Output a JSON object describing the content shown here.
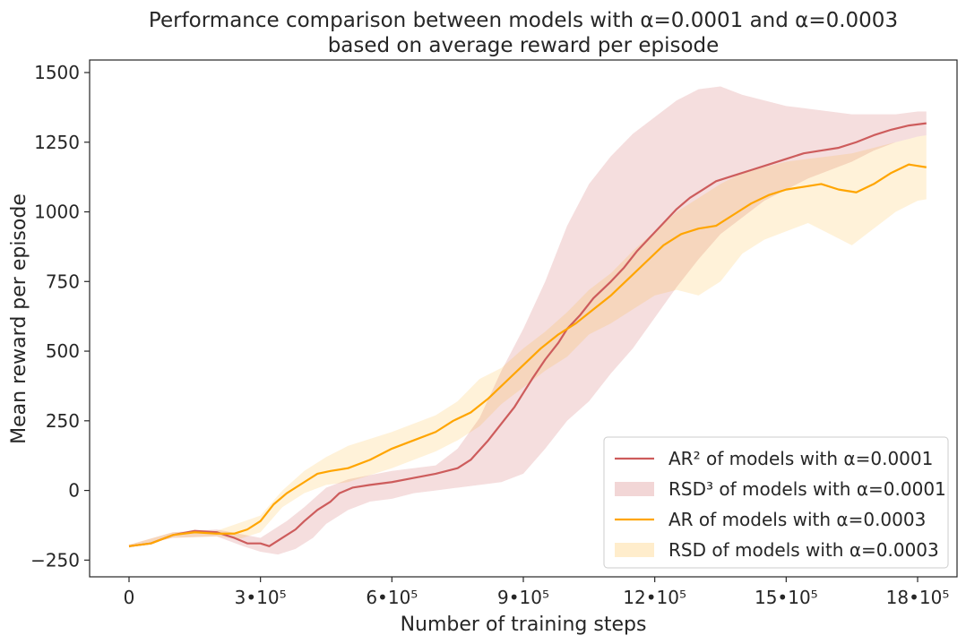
{
  "chart_data": {
    "type": "line",
    "title": "Performance comparison between models with α=0.0001 and α=0.0003",
    "subtitle": "based on average reward per episode",
    "xlabel": "Number of training steps",
    "ylabel": "Mean reward per episode",
    "xlim": [
      -90000,
      1890000
    ],
    "ylim": [
      -310,
      1545
    ],
    "x_ticks": [
      0,
      300000,
      600000,
      900000,
      1200000,
      1500000,
      1800000
    ],
    "x_tick_labels": [
      "0",
      "3•10⁵",
      "6•10⁵",
      "9•10⁵",
      "12•10⁵",
      "15•10⁵",
      "18•10⁵"
    ],
    "y_ticks": [
      -250,
      0,
      250,
      500,
      750,
      1000,
      1250,
      1500
    ],
    "y_tick_labels": [
      "−250",
      "0",
      "250",
      "500",
      "750",
      "1000",
      "1250",
      "1500"
    ],
    "legend_position": "bottom-right",
    "series": [
      {
        "name": "AR² of models with α=0.0001",
        "kind": "line",
        "color": "#cd5c5c",
        "points": [
          [
            0,
            -200
          ],
          [
            50000,
            -190
          ],
          [
            100000,
            -160
          ],
          [
            150000,
            -145
          ],
          [
            200000,
            -150
          ],
          [
            240000,
            -170
          ],
          [
            270000,
            -190
          ],
          [
            300000,
            -190
          ],
          [
            320000,
            -200
          ],
          [
            350000,
            -170
          ],
          [
            380000,
            -140
          ],
          [
            400000,
            -110
          ],
          [
            430000,
            -70
          ],
          [
            460000,
            -40
          ],
          [
            480000,
            -10
          ],
          [
            510000,
            10
          ],
          [
            550000,
            20
          ],
          [
            600000,
            30
          ],
          [
            650000,
            45
          ],
          [
            700000,
            60
          ],
          [
            750000,
            80
          ],
          [
            780000,
            110
          ],
          [
            820000,
            180
          ],
          [
            850000,
            240
          ],
          [
            880000,
            300
          ],
          [
            900000,
            350
          ],
          [
            920000,
            400
          ],
          [
            950000,
            470
          ],
          [
            980000,
            530
          ],
          [
            1000000,
            580
          ],
          [
            1030000,
            630
          ],
          [
            1060000,
            690
          ],
          [
            1100000,
            750
          ],
          [
            1130000,
            800
          ],
          [
            1160000,
            860
          ],
          [
            1190000,
            910
          ],
          [
            1220000,
            960
          ],
          [
            1250000,
            1010
          ],
          [
            1280000,
            1050
          ],
          [
            1310000,
            1080
          ],
          [
            1340000,
            1110
          ],
          [
            1380000,
            1130
          ],
          [
            1420000,
            1150
          ],
          [
            1460000,
            1170
          ],
          [
            1500000,
            1190
          ],
          [
            1540000,
            1210
          ],
          [
            1580000,
            1220
          ],
          [
            1620000,
            1230
          ],
          [
            1660000,
            1250
          ],
          [
            1700000,
            1275
          ],
          [
            1740000,
            1295
          ],
          [
            1780000,
            1310
          ],
          [
            1820000,
            1318
          ]
        ]
      },
      {
        "name": "RSD³ of models with α=0.0001",
        "kind": "band",
        "color": "#cd5c5c",
        "opacity": 0.2,
        "upper": [
          [
            0,
            -195
          ],
          [
            100000,
            -150
          ],
          [
            200000,
            -140
          ],
          [
            300000,
            -170
          ],
          [
            360000,
            -110
          ],
          [
            400000,
            -60
          ],
          [
            450000,
            10
          ],
          [
            500000,
            40
          ],
          [
            600000,
            70
          ],
          [
            700000,
            90
          ],
          [
            750000,
            150
          ],
          [
            800000,
            260
          ],
          [
            850000,
            430
          ],
          [
            900000,
            580
          ],
          [
            950000,
            750
          ],
          [
            1000000,
            950
          ],
          [
            1050000,
            1100
          ],
          [
            1100000,
            1200
          ],
          [
            1150000,
            1280
          ],
          [
            1200000,
            1340
          ],
          [
            1250000,
            1400
          ],
          [
            1300000,
            1440
          ],
          [
            1350000,
            1450
          ],
          [
            1400000,
            1420
          ],
          [
            1450000,
            1400
          ],
          [
            1500000,
            1380
          ],
          [
            1550000,
            1370
          ],
          [
            1600000,
            1360
          ],
          [
            1650000,
            1350
          ],
          [
            1700000,
            1350
          ],
          [
            1750000,
            1350
          ],
          [
            1800000,
            1360
          ],
          [
            1820000,
            1360
          ]
        ],
        "lower": [
          [
            0,
            -205
          ],
          [
            100000,
            -170
          ],
          [
            200000,
            -165
          ],
          [
            260000,
            -200
          ],
          [
            300000,
            -220
          ],
          [
            340000,
            -230
          ],
          [
            380000,
            -210
          ],
          [
            420000,
            -170
          ],
          [
            450000,
            -120
          ],
          [
            500000,
            -70
          ],
          [
            550000,
            -40
          ],
          [
            600000,
            -30
          ],
          [
            650000,
            -10
          ],
          [
            700000,
            0
          ],
          [
            750000,
            10
          ],
          [
            800000,
            20
          ],
          [
            850000,
            30
          ],
          [
            900000,
            60
          ],
          [
            950000,
            150
          ],
          [
            1000000,
            250
          ],
          [
            1050000,
            320
          ],
          [
            1100000,
            420
          ],
          [
            1150000,
            510
          ],
          [
            1200000,
            620
          ],
          [
            1250000,
            730
          ],
          [
            1300000,
            830
          ],
          [
            1350000,
            920
          ],
          [
            1400000,
            980
          ],
          [
            1450000,
            1040
          ],
          [
            1500000,
            1080
          ],
          [
            1550000,
            1120
          ],
          [
            1600000,
            1150
          ],
          [
            1650000,
            1180
          ],
          [
            1700000,
            1220
          ],
          [
            1750000,
            1250
          ],
          [
            1800000,
            1270
          ],
          [
            1820000,
            1275
          ]
        ]
      },
      {
        "name": "AR of models with α=0.0003",
        "kind": "line",
        "color": "#ffa500",
        "points": [
          [
            0,
            -200
          ],
          [
            50000,
            -190
          ],
          [
            100000,
            -160
          ],
          [
            150000,
            -150
          ],
          [
            200000,
            -155
          ],
          [
            240000,
            -155
          ],
          [
            270000,
            -140
          ],
          [
            300000,
            -110
          ],
          [
            330000,
            -50
          ],
          [
            360000,
            -10
          ],
          [
            400000,
            30
          ],
          [
            430000,
            60
          ],
          [
            460000,
            70
          ],
          [
            500000,
            80
          ],
          [
            550000,
            110
          ],
          [
            600000,
            150
          ],
          [
            650000,
            180
          ],
          [
            700000,
            210
          ],
          [
            740000,
            250
          ],
          [
            780000,
            280
          ],
          [
            820000,
            330
          ],
          [
            860000,
            390
          ],
          [
            900000,
            450
          ],
          [
            940000,
            510
          ],
          [
            980000,
            560
          ],
          [
            1020000,
            600
          ],
          [
            1060000,
            650
          ],
          [
            1100000,
            700
          ],
          [
            1140000,
            760
          ],
          [
            1180000,
            820
          ],
          [
            1220000,
            880
          ],
          [
            1260000,
            920
          ],
          [
            1300000,
            940
          ],
          [
            1340000,
            950
          ],
          [
            1380000,
            990
          ],
          [
            1420000,
            1030
          ],
          [
            1460000,
            1060
          ],
          [
            1500000,
            1080
          ],
          [
            1540000,
            1090
          ],
          [
            1580000,
            1100
          ],
          [
            1620000,
            1080
          ],
          [
            1660000,
            1070
          ],
          [
            1700000,
            1100
          ],
          [
            1740000,
            1140
          ],
          [
            1780000,
            1170
          ],
          [
            1820000,
            1160
          ]
        ]
      },
      {
        "name": "RSD of models with α=0.0003",
        "kind": "band",
        "color": "#ffa500",
        "opacity": 0.15,
        "upper": [
          [
            0,
            -195
          ],
          [
            100000,
            -150
          ],
          [
            200000,
            -145
          ],
          [
            300000,
            -90
          ],
          [
            350000,
            0
          ],
          [
            400000,
            70
          ],
          [
            450000,
            120
          ],
          [
            500000,
            160
          ],
          [
            600000,
            210
          ],
          [
            700000,
            270
          ],
          [
            750000,
            320
          ],
          [
            800000,
            400
          ],
          [
            850000,
            440
          ],
          [
            900000,
            510
          ],
          [
            950000,
            570
          ],
          [
            1000000,
            640
          ],
          [
            1050000,
            720
          ],
          [
            1100000,
            780
          ],
          [
            1150000,
            860
          ],
          [
            1200000,
            930
          ],
          [
            1250000,
            1000
          ],
          [
            1300000,
            1050
          ],
          [
            1350000,
            1100
          ],
          [
            1400000,
            1140
          ],
          [
            1450000,
            1160
          ],
          [
            1500000,
            1180
          ],
          [
            1550000,
            1190
          ],
          [
            1600000,
            1200
          ],
          [
            1650000,
            1210
          ],
          [
            1700000,
            1230
          ],
          [
            1750000,
            1250
          ],
          [
            1800000,
            1270
          ],
          [
            1820000,
            1275
          ]
        ],
        "lower": [
          [
            0,
            -205
          ],
          [
            100000,
            -170
          ],
          [
            200000,
            -165
          ],
          [
            250000,
            -175
          ],
          [
            300000,
            -150
          ],
          [
            350000,
            -60
          ],
          [
            400000,
            -10
          ],
          [
            450000,
            20
          ],
          [
            500000,
            30
          ],
          [
            600000,
            80
          ],
          [
            700000,
            140
          ],
          [
            750000,
            180
          ],
          [
            800000,
            230
          ],
          [
            850000,
            310
          ],
          [
            900000,
            370
          ],
          [
            950000,
            430
          ],
          [
            1000000,
            480
          ],
          [
            1050000,
            560
          ],
          [
            1100000,
            600
          ],
          [
            1150000,
            650
          ],
          [
            1200000,
            700
          ],
          [
            1250000,
            720
          ],
          [
            1300000,
            700
          ],
          [
            1350000,
            750
          ],
          [
            1400000,
            850
          ],
          [
            1450000,
            900
          ],
          [
            1500000,
            930
          ],
          [
            1550000,
            960
          ],
          [
            1600000,
            920
          ],
          [
            1650000,
            880
          ],
          [
            1700000,
            940
          ],
          [
            1750000,
            1000
          ],
          [
            1800000,
            1040
          ],
          [
            1820000,
            1045
          ]
        ]
      }
    ]
  }
}
